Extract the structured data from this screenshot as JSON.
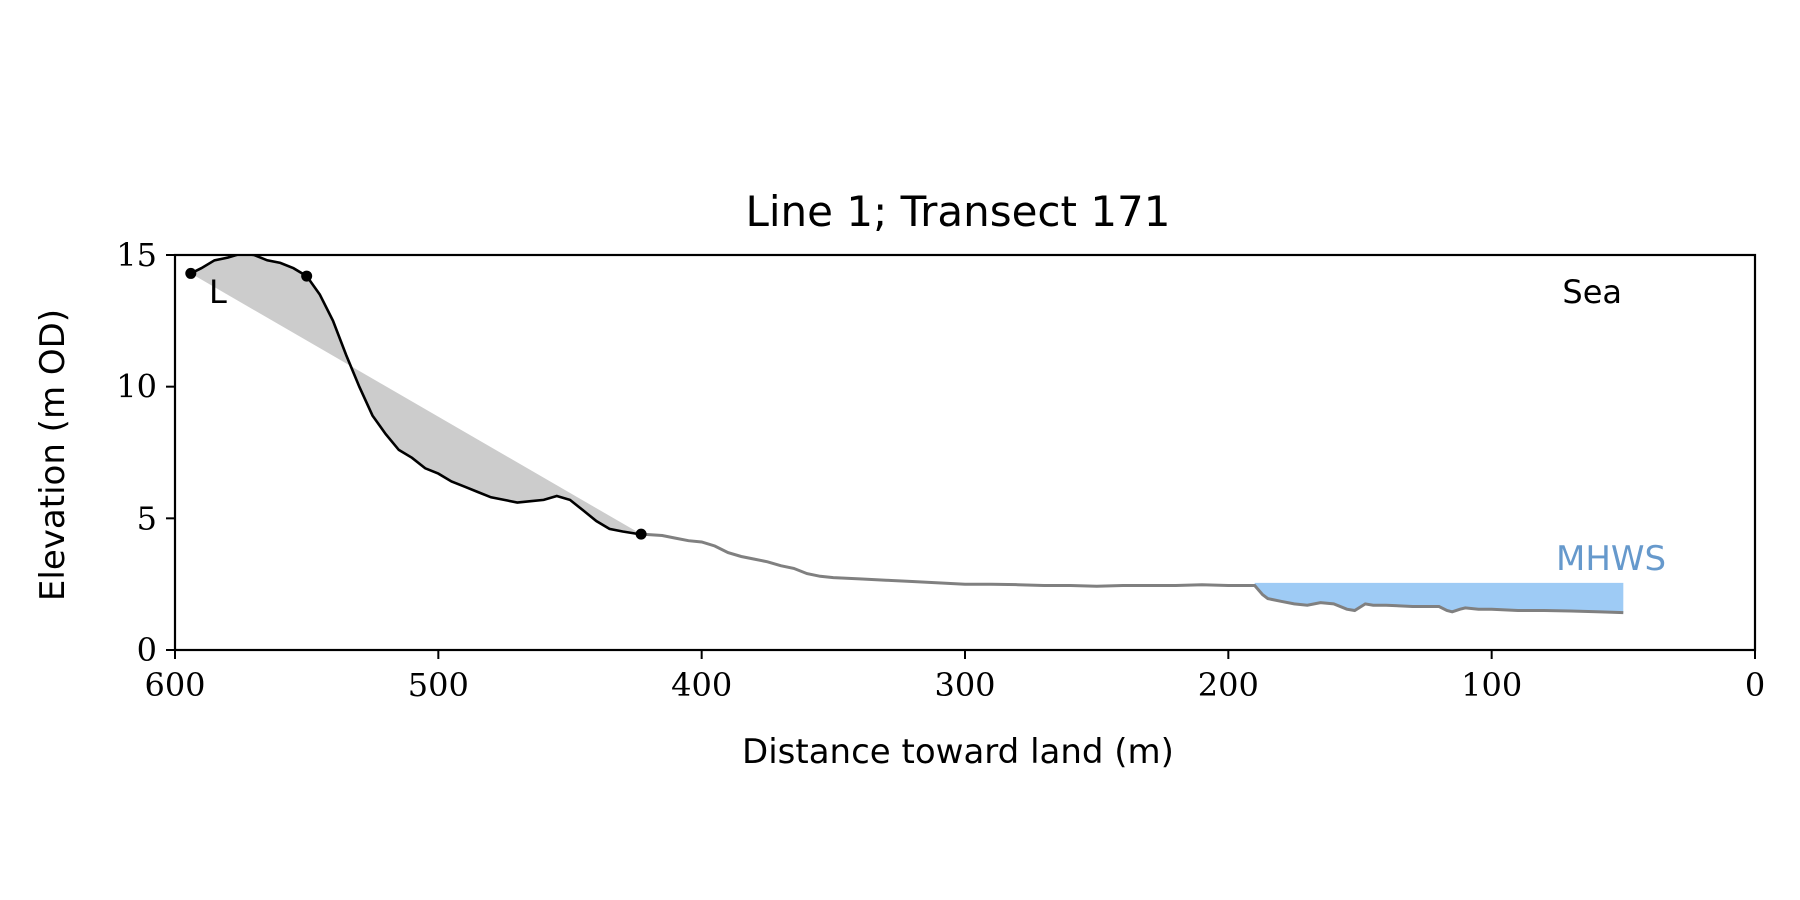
{
  "chart_data": {
    "type": "line",
    "title": "Line 1; Transect 171",
    "xlabel": "Distance toward land (m)",
    "ylabel": "Elevation (m OD)",
    "xlim": [
      600,
      0
    ],
    "ylim": [
      0,
      15
    ],
    "x_ticks": [
      "600",
      "500",
      "400",
      "300",
      "200",
      "100",
      "0"
    ],
    "y_ticks": [
      "0",
      "5",
      "10",
      "15"
    ],
    "annotations": {
      "sea": "Sea",
      "land": "L",
      "mhws": "MHWS"
    },
    "colors": {
      "cliff_profile": "#000000",
      "foreshore_profile": "#808080",
      "fill": "#cccccc",
      "mhws_fill": "#9ecbf5",
      "mhws_text": "#6699cc"
    },
    "mhws_level": 2.55,
    "mhws_x_range": [
      190,
      50
    ],
    "markers": [
      {
        "x": 594,
        "y": 14.3
      },
      {
        "x": 550,
        "y": 14.2
      },
      {
        "x": 423,
        "y": 4.4
      }
    ],
    "chord": [
      [
        594,
        14.3
      ],
      [
        423,
        4.4
      ]
    ],
    "series": [
      {
        "role": "cliff",
        "x": [
          594,
          590,
          585,
          580,
          575,
          570,
          565,
          560,
          555,
          550,
          545,
          540,
          535,
          530,
          525,
          520,
          515,
          510,
          505,
          500,
          495,
          490,
          485,
          480,
          475,
          470,
          465,
          460,
          455,
          450,
          445,
          440,
          435,
          430,
          425,
          423
        ],
        "y": [
          14.3,
          14.5,
          14.8,
          14.9,
          15.05,
          15.0,
          14.8,
          14.7,
          14.5,
          14.2,
          13.5,
          12.5,
          11.2,
          10.0,
          8.9,
          8.2,
          7.6,
          7.3,
          6.9,
          6.7,
          6.4,
          6.2,
          6.0,
          5.8,
          5.7,
          5.6,
          5.65,
          5.7,
          5.85,
          5.7,
          5.3,
          4.9,
          4.6,
          4.5,
          4.42,
          4.4
        ]
      },
      {
        "role": "foreshore",
        "x": [
          423,
          415,
          410,
          405,
          400,
          395,
          390,
          385,
          380,
          375,
          370,
          365,
          360,
          355,
          350,
          340,
          330,
          320,
          310,
          300,
          290,
          280,
          270,
          260,
          250,
          240,
          230,
          220,
          210,
          200,
          195,
          190,
          187,
          185,
          180,
          175,
          170,
          165,
          160,
          155,
          152,
          148,
          145,
          140,
          130,
          120,
          117,
          115,
          112,
          110,
          105,
          100,
          90,
          80,
          70,
          60,
          50
        ],
        "y": [
          4.4,
          4.35,
          4.25,
          4.15,
          4.1,
          3.95,
          3.7,
          3.55,
          3.45,
          3.35,
          3.2,
          3.1,
          2.9,
          2.8,
          2.75,
          2.7,
          2.65,
          2.6,
          2.55,
          2.5,
          2.5,
          2.48,
          2.45,
          2.45,
          2.42,
          2.45,
          2.45,
          2.45,
          2.48,
          2.45,
          2.45,
          2.45,
          2.1,
          1.95,
          1.85,
          1.75,
          1.7,
          1.8,
          1.75,
          1.55,
          1.5,
          1.75,
          1.7,
          1.7,
          1.65,
          1.65,
          1.5,
          1.45,
          1.55,
          1.6,
          1.55,
          1.55,
          1.5,
          1.5,
          1.48,
          1.45,
          1.42
        ]
      }
    ]
  }
}
